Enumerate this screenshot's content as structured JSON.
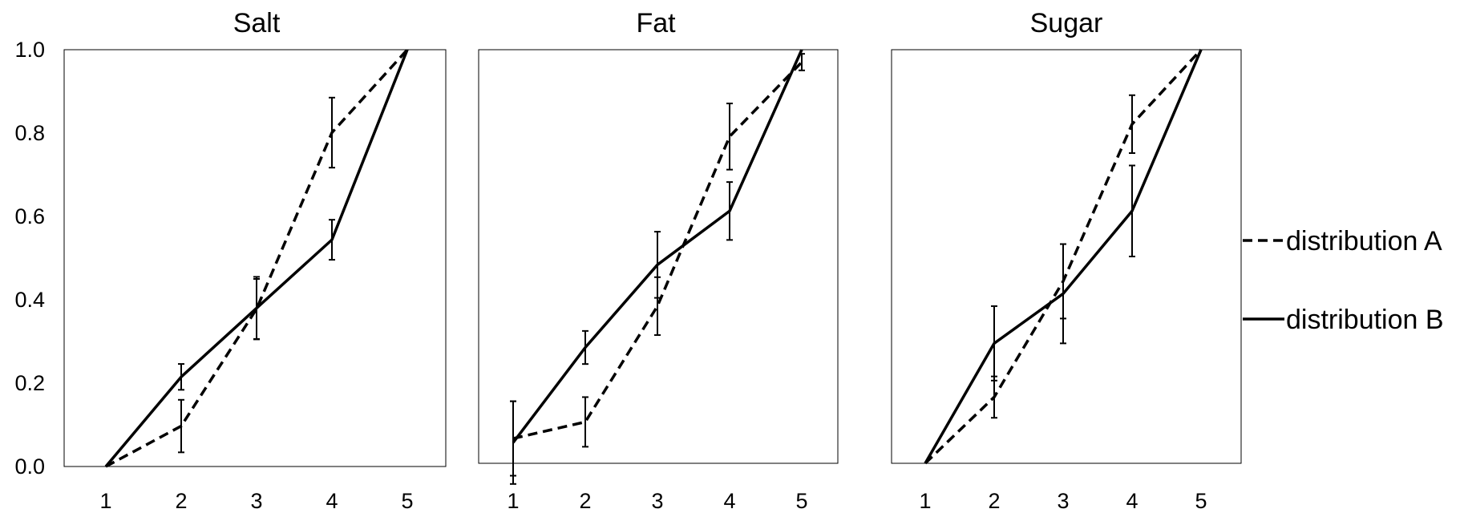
{
  "chart_data": {
    "type": "line",
    "y_ticks": [
      "0.0",
      "0.2",
      "0.4",
      "0.6",
      "0.8",
      "1.0"
    ],
    "ylim": [
      0,
      1
    ],
    "x_categories": [
      "1",
      "2",
      "3",
      "4",
      "5"
    ],
    "legend": [
      {
        "label": "distribution A",
        "style": "dashed",
        "color": "#000000"
      },
      {
        "label": "distribution B",
        "style": "solid",
        "color": "#000000"
      }
    ],
    "legend_position": "right",
    "grid": false,
    "panels": [
      {
        "title": "Salt",
        "series": [
          {
            "name": "distribution A",
            "style": "dashed",
            "values": [
              0.0,
              0.097,
              0.378,
              0.801,
              1.0
            ],
            "errors": [
              0,
              0.063,
              0.072,
              0.084,
              0
            ]
          },
          {
            "name": "distribution B",
            "style": "solid",
            "values": [
              0.0,
              0.215,
              0.38,
              0.544,
              1.0
            ],
            "errors": [
              0,
              0.031,
              0.075,
              0.048,
              0
            ]
          }
        ]
      },
      {
        "title": "Fat",
        "series": [
          {
            "name": "distribution A",
            "style": "dashed",
            "values": [
              0.06,
              0.1,
              0.38,
              0.79,
              0.97
            ],
            "errors": [
              0.09,
              0.06,
              0.07,
              0.08,
              0.02
            ]
          },
          {
            "name": "distribution B",
            "style": "solid",
            "values": [
              0.05,
              0.28,
              0.48,
              0.61,
              1.0
            ],
            "errors": [
              0.1,
              0.04,
              0.08,
              0.07,
              0
            ]
          }
        ]
      },
      {
        "title": "Sugar",
        "series": [
          {
            "name": "distribution A",
            "style": "dashed",
            "values": [
              0.0,
              0.16,
              0.44,
              0.82,
              1.0
            ],
            "errors": [
              0,
              0.05,
              0.09,
              0.07,
              0
            ]
          },
          {
            "name": "distribution B",
            "style": "solid",
            "values": [
              0.0,
              0.29,
              0.41,
              0.61,
              1.0
            ],
            "errors": [
              0,
              0.09,
              0.12,
              0.11,
              0
            ]
          }
        ]
      }
    ]
  }
}
